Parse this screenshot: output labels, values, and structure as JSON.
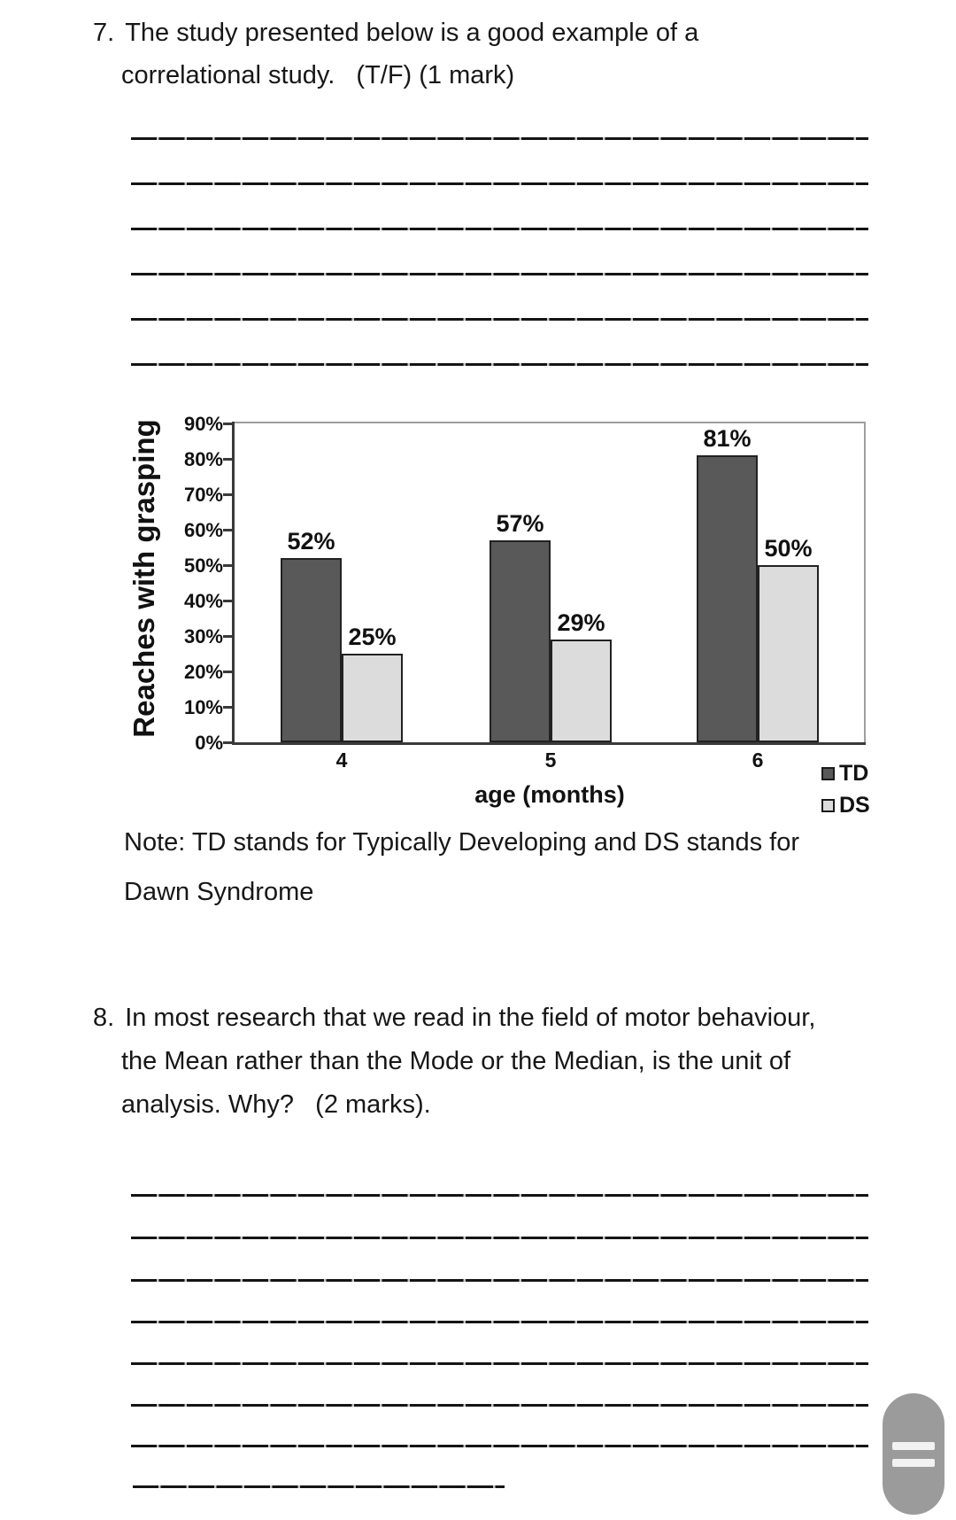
{
  "question7": {
    "number": "7.",
    "lines": [
      "The study presented below is a good example of a",
      "correlational study.   (T/F) (1 mark)"
    ]
  },
  "chart_data": {
    "type": "bar",
    "categories": [
      "4",
      "5",
      "6"
    ],
    "series": [
      {
        "name": "TD",
        "values": [
          52,
          57,
          81
        ],
        "color": "#595959",
        "border": "#222222"
      },
      {
        "name": "DS",
        "values": [
          25,
          29,
          50
        ],
        "color": "#dcdcdc",
        "border": "#222222"
      }
    ],
    "data_labels": {
      "TD": [
        "52%",
        "57%",
        "81%"
      ],
      "DS": [
        "25%",
        "29%",
        "50%"
      ]
    },
    "xlabel": "age (months)",
    "ylabel": "Reaches with grasping",
    "ylim": [
      0,
      90
    ],
    "ytick_step": 10,
    "ytick_suffix": "%",
    "grid": false,
    "legend": [
      "TD",
      "DS"
    ],
    "legend_position": "right-bottom"
  },
  "note": {
    "lines": [
      "Note: TD stands for Typically Developing and DS stands for",
      "Dawn Syndrome"
    ]
  },
  "question8": {
    "number": "8.",
    "lines": [
      "In most research that we read in the field of motor behaviour,",
      "the Mean rather than the Mode or the Median, is the unit of",
      "analysis. Why?   (2 marks)."
    ]
  },
  "answer_sections": {
    "q7_line_count": 6,
    "q8_full_line_count": 7,
    "q8_short_line_count": 1
  },
  "colors": {
    "text": "#1a1a1a",
    "td_bar": "#595959",
    "ds_bar": "#dcdcdc",
    "scroll_pill": "#9b9b9b",
    "line_color": "#141414"
  }
}
